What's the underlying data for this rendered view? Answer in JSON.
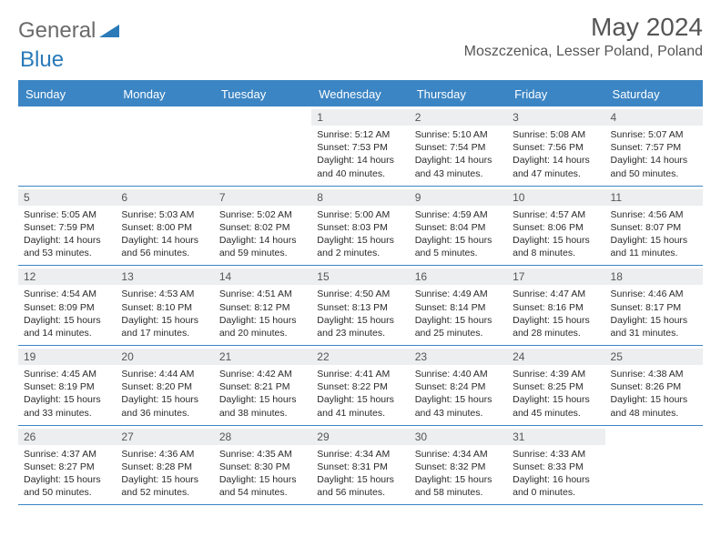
{
  "logo": {
    "text1": "General",
    "text2": "Blue"
  },
  "title": "May 2024",
  "location": "Moszczenica, Lesser Poland, Poland",
  "colors": {
    "header_bg": "#3b85c4",
    "daynum_bg": "#edeeef",
    "text": "#333333",
    "title_text": "#555555"
  },
  "day_names": [
    "Sunday",
    "Monday",
    "Tuesday",
    "Wednesday",
    "Thursday",
    "Friday",
    "Saturday"
  ],
  "weeks": [
    [
      {
        "n": "",
        "sr": "",
        "ss": "",
        "dl": ""
      },
      {
        "n": "",
        "sr": "",
        "ss": "",
        "dl": ""
      },
      {
        "n": "",
        "sr": "",
        "ss": "",
        "dl": ""
      },
      {
        "n": "1",
        "sr": "Sunrise: 5:12 AM",
        "ss": "Sunset: 7:53 PM",
        "dl": "Daylight: 14 hours and 40 minutes."
      },
      {
        "n": "2",
        "sr": "Sunrise: 5:10 AM",
        "ss": "Sunset: 7:54 PM",
        "dl": "Daylight: 14 hours and 43 minutes."
      },
      {
        "n": "3",
        "sr": "Sunrise: 5:08 AM",
        "ss": "Sunset: 7:56 PM",
        "dl": "Daylight: 14 hours and 47 minutes."
      },
      {
        "n": "4",
        "sr": "Sunrise: 5:07 AM",
        "ss": "Sunset: 7:57 PM",
        "dl": "Daylight: 14 hours and 50 minutes."
      }
    ],
    [
      {
        "n": "5",
        "sr": "Sunrise: 5:05 AM",
        "ss": "Sunset: 7:59 PM",
        "dl": "Daylight: 14 hours and 53 minutes."
      },
      {
        "n": "6",
        "sr": "Sunrise: 5:03 AM",
        "ss": "Sunset: 8:00 PM",
        "dl": "Daylight: 14 hours and 56 minutes."
      },
      {
        "n": "7",
        "sr": "Sunrise: 5:02 AM",
        "ss": "Sunset: 8:02 PM",
        "dl": "Daylight: 14 hours and 59 minutes."
      },
      {
        "n": "8",
        "sr": "Sunrise: 5:00 AM",
        "ss": "Sunset: 8:03 PM",
        "dl": "Daylight: 15 hours and 2 minutes."
      },
      {
        "n": "9",
        "sr": "Sunrise: 4:59 AM",
        "ss": "Sunset: 8:04 PM",
        "dl": "Daylight: 15 hours and 5 minutes."
      },
      {
        "n": "10",
        "sr": "Sunrise: 4:57 AM",
        "ss": "Sunset: 8:06 PM",
        "dl": "Daylight: 15 hours and 8 minutes."
      },
      {
        "n": "11",
        "sr": "Sunrise: 4:56 AM",
        "ss": "Sunset: 8:07 PM",
        "dl": "Daylight: 15 hours and 11 minutes."
      }
    ],
    [
      {
        "n": "12",
        "sr": "Sunrise: 4:54 AM",
        "ss": "Sunset: 8:09 PM",
        "dl": "Daylight: 15 hours and 14 minutes."
      },
      {
        "n": "13",
        "sr": "Sunrise: 4:53 AM",
        "ss": "Sunset: 8:10 PM",
        "dl": "Daylight: 15 hours and 17 minutes."
      },
      {
        "n": "14",
        "sr": "Sunrise: 4:51 AM",
        "ss": "Sunset: 8:12 PM",
        "dl": "Daylight: 15 hours and 20 minutes."
      },
      {
        "n": "15",
        "sr": "Sunrise: 4:50 AM",
        "ss": "Sunset: 8:13 PM",
        "dl": "Daylight: 15 hours and 23 minutes."
      },
      {
        "n": "16",
        "sr": "Sunrise: 4:49 AM",
        "ss": "Sunset: 8:14 PM",
        "dl": "Daylight: 15 hours and 25 minutes."
      },
      {
        "n": "17",
        "sr": "Sunrise: 4:47 AM",
        "ss": "Sunset: 8:16 PM",
        "dl": "Daylight: 15 hours and 28 minutes."
      },
      {
        "n": "18",
        "sr": "Sunrise: 4:46 AM",
        "ss": "Sunset: 8:17 PM",
        "dl": "Daylight: 15 hours and 31 minutes."
      }
    ],
    [
      {
        "n": "19",
        "sr": "Sunrise: 4:45 AM",
        "ss": "Sunset: 8:19 PM",
        "dl": "Daylight: 15 hours and 33 minutes."
      },
      {
        "n": "20",
        "sr": "Sunrise: 4:44 AM",
        "ss": "Sunset: 8:20 PM",
        "dl": "Daylight: 15 hours and 36 minutes."
      },
      {
        "n": "21",
        "sr": "Sunrise: 4:42 AM",
        "ss": "Sunset: 8:21 PM",
        "dl": "Daylight: 15 hours and 38 minutes."
      },
      {
        "n": "22",
        "sr": "Sunrise: 4:41 AM",
        "ss": "Sunset: 8:22 PM",
        "dl": "Daylight: 15 hours and 41 minutes."
      },
      {
        "n": "23",
        "sr": "Sunrise: 4:40 AM",
        "ss": "Sunset: 8:24 PM",
        "dl": "Daylight: 15 hours and 43 minutes."
      },
      {
        "n": "24",
        "sr": "Sunrise: 4:39 AM",
        "ss": "Sunset: 8:25 PM",
        "dl": "Daylight: 15 hours and 45 minutes."
      },
      {
        "n": "25",
        "sr": "Sunrise: 4:38 AM",
        "ss": "Sunset: 8:26 PM",
        "dl": "Daylight: 15 hours and 48 minutes."
      }
    ],
    [
      {
        "n": "26",
        "sr": "Sunrise: 4:37 AM",
        "ss": "Sunset: 8:27 PM",
        "dl": "Daylight: 15 hours and 50 minutes."
      },
      {
        "n": "27",
        "sr": "Sunrise: 4:36 AM",
        "ss": "Sunset: 8:28 PM",
        "dl": "Daylight: 15 hours and 52 minutes."
      },
      {
        "n": "28",
        "sr": "Sunrise: 4:35 AM",
        "ss": "Sunset: 8:30 PM",
        "dl": "Daylight: 15 hours and 54 minutes."
      },
      {
        "n": "29",
        "sr": "Sunrise: 4:34 AM",
        "ss": "Sunset: 8:31 PM",
        "dl": "Daylight: 15 hours and 56 minutes."
      },
      {
        "n": "30",
        "sr": "Sunrise: 4:34 AM",
        "ss": "Sunset: 8:32 PM",
        "dl": "Daylight: 15 hours and 58 minutes."
      },
      {
        "n": "31",
        "sr": "Sunrise: 4:33 AM",
        "ss": "Sunset: 8:33 PM",
        "dl": "Daylight: 16 hours and 0 minutes."
      },
      {
        "n": "",
        "sr": "",
        "ss": "",
        "dl": ""
      }
    ]
  ]
}
